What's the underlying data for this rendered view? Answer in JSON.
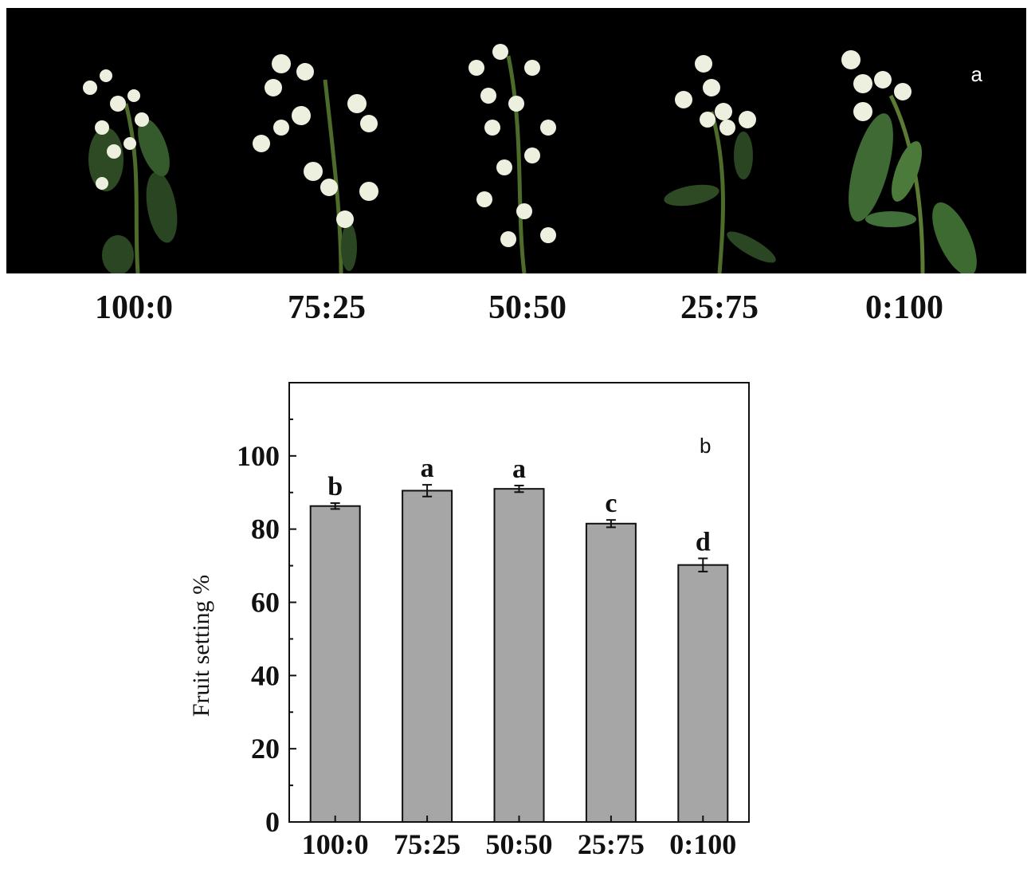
{
  "figure": {
    "panel_a_letter": "a",
    "photo_labels": [
      "100:0",
      "75:25",
      "50:50",
      "25:75",
      "0:100"
    ]
  },
  "chart_data": {
    "type": "bar",
    "panel_letter": "b",
    "categories": [
      "100:0",
      "75:25",
      "50:50",
      "25:75",
      "0:100"
    ],
    "values": [
      86.3,
      90.5,
      91.0,
      81.5,
      70.2
    ],
    "errors": [
      0.8,
      1.6,
      0.9,
      1.0,
      1.8
    ],
    "significance": [
      "b",
      "a",
      "a",
      "c",
      "d"
    ],
    "title": "",
    "xlabel": "",
    "ylabel": "Fruit setting %",
    "ylim": [
      0,
      120
    ],
    "yticks": [
      0,
      20,
      40,
      60,
      80,
      100
    ],
    "grid": false,
    "bar_color": "#a6a6a6"
  }
}
